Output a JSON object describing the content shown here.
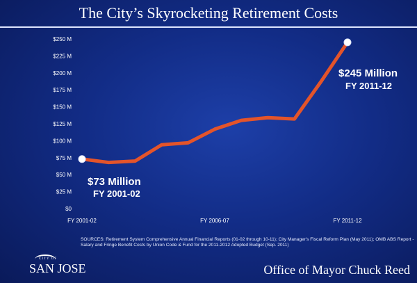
{
  "title": "The City’s Skyrocketing Retirement Costs",
  "chart_data": {
    "type": "line",
    "title": "",
    "xlabel": "",
    "ylabel": "",
    "x_tick_labels": [
      "FY 2001-02",
      "FY 2006-07",
      "FY 2011-12"
    ],
    "y_tick_labels": [
      "$0",
      "$25 M",
      "$50 M",
      "$75 M",
      "$100 M",
      "$125 M",
      "$150 M",
      "$175 M",
      "$200 M",
      "$225 M",
      "$250 M"
    ],
    "ylim": [
      0,
      250
    ],
    "x": [
      "2001-02",
      "2002-03",
      "2003-04",
      "2004-05",
      "2005-06",
      "2006-07",
      "2007-08",
      "2008-09",
      "2009-10",
      "2010-11",
      "2011-12"
    ],
    "series": [
      {
        "values": [
          73,
          68,
          70,
          94,
          97,
          117,
          130,
          134,
          132,
          187,
          245
        ]
      }
    ],
    "annotations": [
      {
        "line1": "$73 Million",
        "line2": "FY 2001-02"
      },
      {
        "line1": "$245 Million",
        "line2": "FY 2011-12"
      }
    ],
    "line_color": "#e4542a",
    "grid": false
  },
  "sources_text": "SOURCES: Retirement System Comprehensive Annual Financial Reports (01-02 through 10-11); City Manager's Fiscal Reform Plan (May 2011); OMB ABS Report - Salary and Fringe Benefit Costs by Union Code & Fund for the 2011-2012 Adopted Budget (Sep. 2011)",
  "logo": {
    "small": "CITY OF",
    "name": "SAN JOSE"
  },
  "office": "Office of Mayor Chuck Reed"
}
